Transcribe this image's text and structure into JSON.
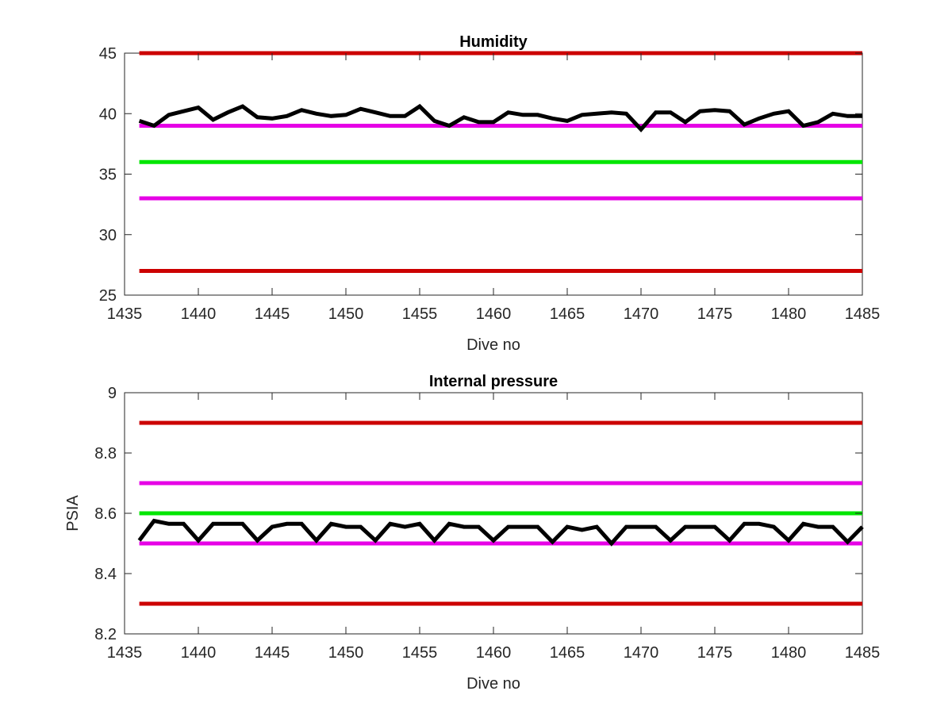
{
  "chart_data": [
    {
      "type": "line",
      "title": "Humidity",
      "xlabel": "Dive no",
      "ylabel": "",
      "xlim": [
        1435,
        1485
      ],
      "ylim": [
        25,
        45
      ],
      "xticks": [
        "1435",
        "1440",
        "1445",
        "1450",
        "1455",
        "1460",
        "1465",
        "1470",
        "1475",
        "1480",
        "1485"
      ],
      "yticks": [
        "25",
        "30",
        "35",
        "40",
        "45"
      ],
      "grid": false,
      "legend": "none",
      "reference_lines": [
        {
          "y": 45,
          "color": "#cc0000"
        },
        {
          "y": 39,
          "color": "#e600e6"
        },
        {
          "y": 36,
          "color": "#00e600"
        },
        {
          "y": 33,
          "color": "#e600e6"
        },
        {
          "y": 27,
          "color": "#cc0000"
        }
      ],
      "series": [
        {
          "color": "#000000",
          "x": [
            1436,
            1437,
            1438,
            1439,
            1440,
            1441,
            1442,
            1443,
            1444,
            1445,
            1446,
            1447,
            1448,
            1449,
            1450,
            1451,
            1452,
            1453,
            1454,
            1455,
            1456,
            1457,
            1458,
            1459,
            1460,
            1461,
            1462,
            1463,
            1464,
            1465,
            1466,
            1467,
            1468,
            1469,
            1470,
            1471,
            1472,
            1473,
            1474,
            1475,
            1476,
            1477,
            1478,
            1479,
            1480,
            1481,
            1482,
            1483,
            1484,
            1485
          ],
          "y": [
            39.4,
            39.0,
            39.9,
            40.2,
            40.5,
            39.5,
            40.1,
            40.6,
            39.7,
            39.6,
            39.8,
            40.3,
            40.0,
            39.8,
            39.9,
            40.4,
            40.1,
            39.8,
            39.8,
            40.6,
            39.4,
            39.0,
            39.7,
            39.3,
            39.3,
            40.1,
            39.9,
            39.9,
            39.6,
            39.4,
            39.9,
            40.0,
            40.1,
            40.0,
            38.7,
            40.1,
            40.1,
            39.3,
            40.2,
            40.3,
            40.2,
            39.1,
            39.6,
            40.0,
            40.2,
            39.0,
            39.3,
            40.0,
            39.8,
            39.8
          ]
        }
      ]
    },
    {
      "type": "line",
      "title": "Internal pressure",
      "xlabel": "Dive no",
      "ylabel": "PSIA",
      "xlim": [
        1435,
        1485
      ],
      "ylim": [
        8.2,
        9.0
      ],
      "xticks": [
        "1435",
        "1440",
        "1445",
        "1450",
        "1455",
        "1460",
        "1465",
        "1470",
        "1475",
        "1480",
        "1485"
      ],
      "yticks": [
        "8.2",
        "8.4",
        "8.6",
        "8.8",
        "9"
      ],
      "grid": false,
      "legend": "none",
      "reference_lines": [
        {
          "y": 8.9,
          "color": "#cc0000"
        },
        {
          "y": 8.7,
          "color": "#e600e6"
        },
        {
          "y": 8.6,
          "color": "#00e600"
        },
        {
          "y": 8.5,
          "color": "#e600e6"
        },
        {
          "y": 8.3,
          "color": "#cc0000"
        }
      ],
      "series": [
        {
          "color": "#000000",
          "x": [
            1436,
            1437,
            1438,
            1439,
            1440,
            1441,
            1442,
            1443,
            1444,
            1445,
            1446,
            1447,
            1448,
            1449,
            1450,
            1451,
            1452,
            1453,
            1454,
            1455,
            1456,
            1457,
            1458,
            1459,
            1460,
            1461,
            1462,
            1463,
            1464,
            1465,
            1466,
            1467,
            1468,
            1469,
            1470,
            1471,
            1472,
            1473,
            1474,
            1475,
            1476,
            1477,
            1478,
            1479,
            1480,
            1481,
            1482,
            1483,
            1484,
            1485
          ],
          "y": [
            8.51,
            8.575,
            8.565,
            8.565,
            8.51,
            8.565,
            8.565,
            8.565,
            8.51,
            8.555,
            8.565,
            8.565,
            8.51,
            8.565,
            8.555,
            8.555,
            8.51,
            8.565,
            8.555,
            8.565,
            8.51,
            8.565,
            8.555,
            8.555,
            8.51,
            8.555,
            8.555,
            8.555,
            8.505,
            8.555,
            8.545,
            8.555,
            8.5,
            8.555,
            8.555,
            8.555,
            8.51,
            8.555,
            8.555,
            8.555,
            8.51,
            8.565,
            8.565,
            8.555,
            8.51,
            8.565,
            8.555,
            8.555,
            8.505,
            8.555
          ]
        }
      ]
    }
  ]
}
